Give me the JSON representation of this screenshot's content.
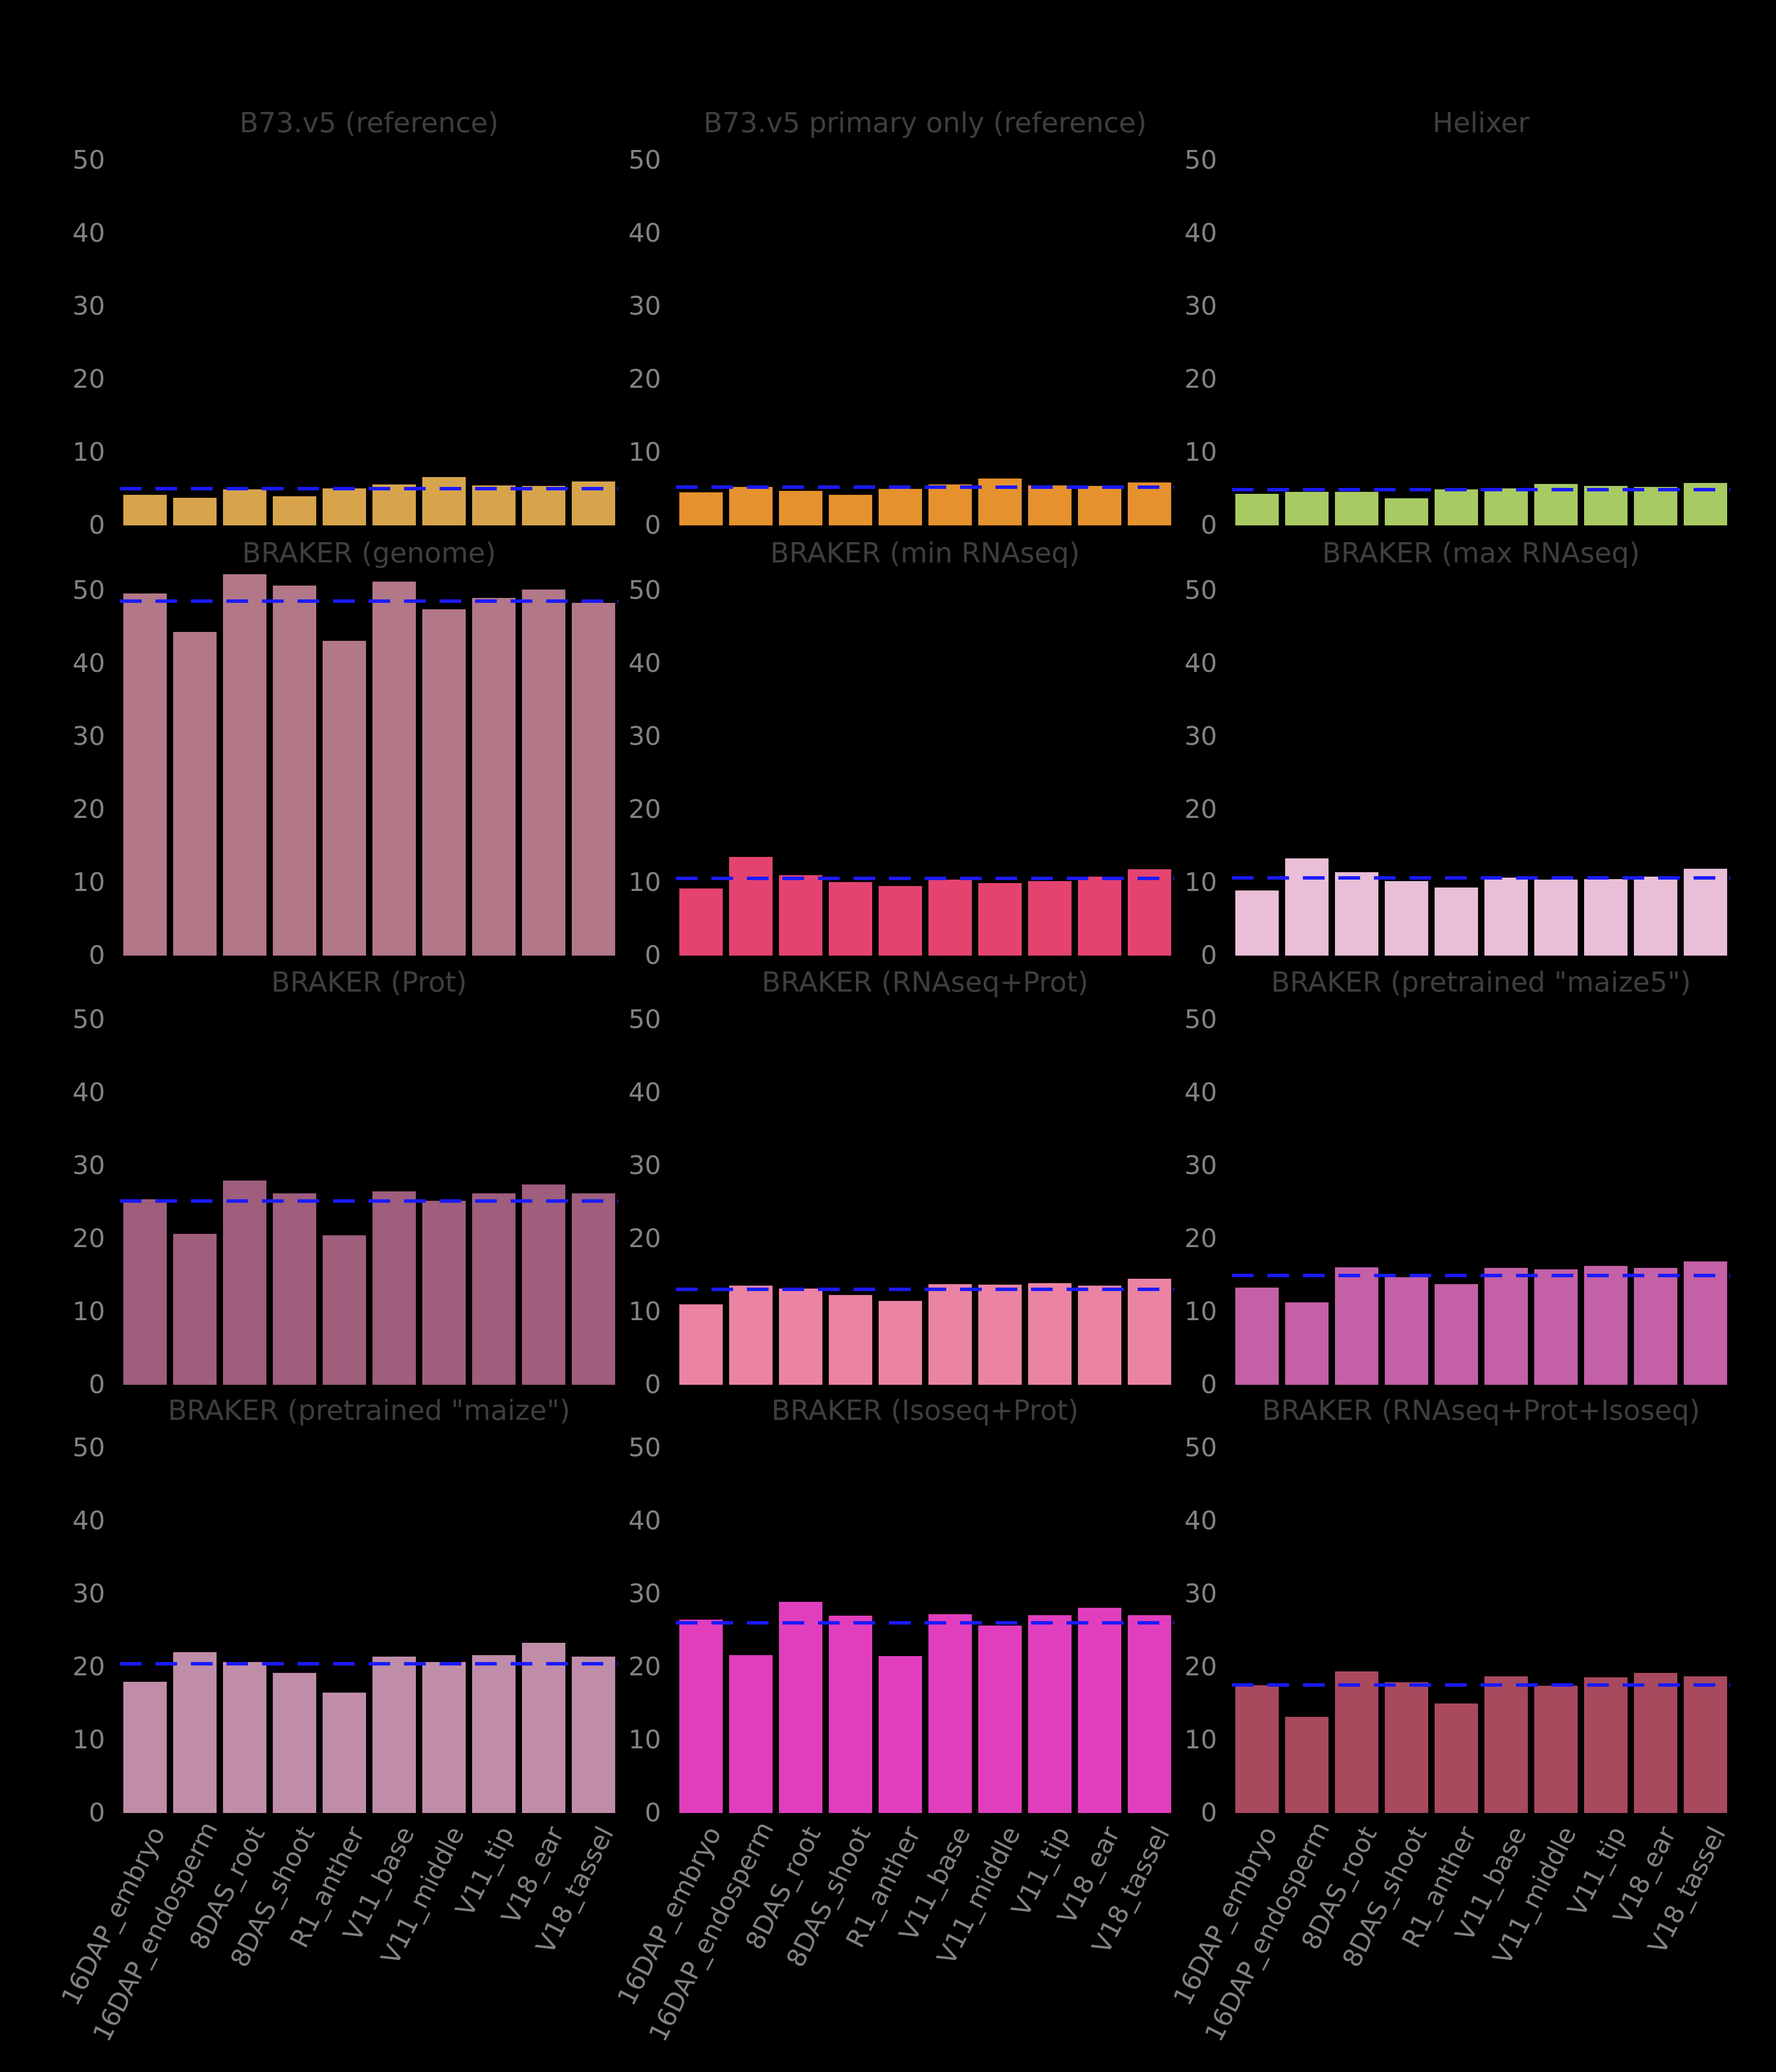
{
  "figure": {
    "background": "#000000",
    "title_color": "#3e3e3e",
    "tick_label_color": "#828282",
    "rows": 4,
    "cols": 3
  },
  "chart_data": {
    "type": "bar",
    "grid": [
      4,
      3
    ],
    "categories": [
      "16DAP_embryo",
      "16DAP_endosperm",
      "8DAS_root",
      "8DAS_shoot",
      "R1_anther",
      "V11_base",
      "V11_middle",
      "V11_tip",
      "V18_ear",
      "V18_tassel"
    ],
    "yticks": [
      0,
      10,
      20,
      30,
      40,
      50
    ],
    "ylim": [
      0,
      52.7
    ],
    "grid_lines": "off",
    "mean_line": {
      "style": "dashed",
      "color": "#1a1aff",
      "meaning": "per-panel mean across samples"
    },
    "subplots": [
      {
        "title": "B73.v5 (reference)",
        "color": "#d7a44c",
        "values": [
          4.2,
          3.8,
          4.9,
          4.0,
          5.1,
          5.6,
          6.6,
          5.5,
          5.4,
          6.0
        ],
        "mean": 5.1
      },
      {
        "title": "B73.v5 primary only (reference)",
        "color": "#e5912e",
        "values": [
          4.5,
          5.3,
          4.7,
          4.2,
          5.0,
          5.6,
          6.4,
          5.5,
          5.4,
          5.9
        ],
        "mean": 5.25
      },
      {
        "title": "Helixer",
        "color": "#a8ca63",
        "values": [
          4.3,
          4.6,
          4.6,
          3.7,
          4.9,
          5.1,
          5.7,
          5.4,
          5.3,
          5.8
        ],
        "mean": 4.9
      },
      {
        "title": "BRAKER (genome)",
        "color": "#b37888",
        "values": [
          49.6,
          44.3,
          52.2,
          50.7,
          43.1,
          51.2,
          47.4,
          49.0,
          50.1,
          48.3
        ],
        "mean": 48.6
      },
      {
        "title": "BRAKER (min RNAseq)",
        "color": "#e44370",
        "values": [
          9.2,
          13.5,
          11.0,
          10.1,
          9.5,
          10.4,
          9.9,
          10.2,
          10.8,
          11.8
        ],
        "mean": 10.6
      },
      {
        "title": "BRAKER (max RNAseq)",
        "color": "#e9bed6",
        "values": [
          8.9,
          13.3,
          11.4,
          10.2,
          9.3,
          10.7,
          10.4,
          10.5,
          10.8,
          11.9
        ],
        "mean": 10.7
      },
      {
        "title": "BRAKER (Prot)",
        "color": "#9e5e7c",
        "values": [
          25.4,
          20.7,
          28.0,
          26.2,
          20.5,
          26.5,
          25.2,
          26.2,
          27.4,
          26.2
        ],
        "mean": 25.2
      },
      {
        "title": "BRAKER (RNAseq+Prot)",
        "color": "#ea84a2",
        "values": [
          11.0,
          13.6,
          13.2,
          12.3,
          11.5,
          13.8,
          13.7,
          13.9,
          13.6,
          14.5
        ],
        "mean": 13.1
      },
      {
        "title": "BRAKER (pretrained \"maize5\")",
        "color": "#c360a6",
        "values": [
          13.3,
          11.3,
          16.1,
          14.7,
          13.8,
          16.0,
          15.8,
          16.3,
          16.0,
          16.9
        ],
        "mean": 15.0
      },
      {
        "title": "BRAKER (pretrained \"maize\")",
        "color": "#c08da8",
        "values": [
          18.0,
          22.0,
          20.7,
          19.2,
          16.5,
          21.4,
          20.7,
          21.6,
          23.3,
          21.4
        ],
        "mean": 20.5
      },
      {
        "title": "BRAKER (Isoseq+Prot)",
        "color": "#e13ebe",
        "values": [
          26.5,
          21.6,
          28.9,
          27.0,
          21.5,
          27.2,
          25.7,
          27.1,
          28.1,
          27.1
        ],
        "mean": 26.1
      },
      {
        "title": "BRAKER (RNAseq+Prot+Isoseq)",
        "color": "#a8495e",
        "values": [
          17.5,
          13.2,
          19.4,
          17.9,
          15.0,
          18.7,
          17.4,
          18.6,
          19.2,
          18.7
        ],
        "mean": 17.6
      }
    ]
  }
}
